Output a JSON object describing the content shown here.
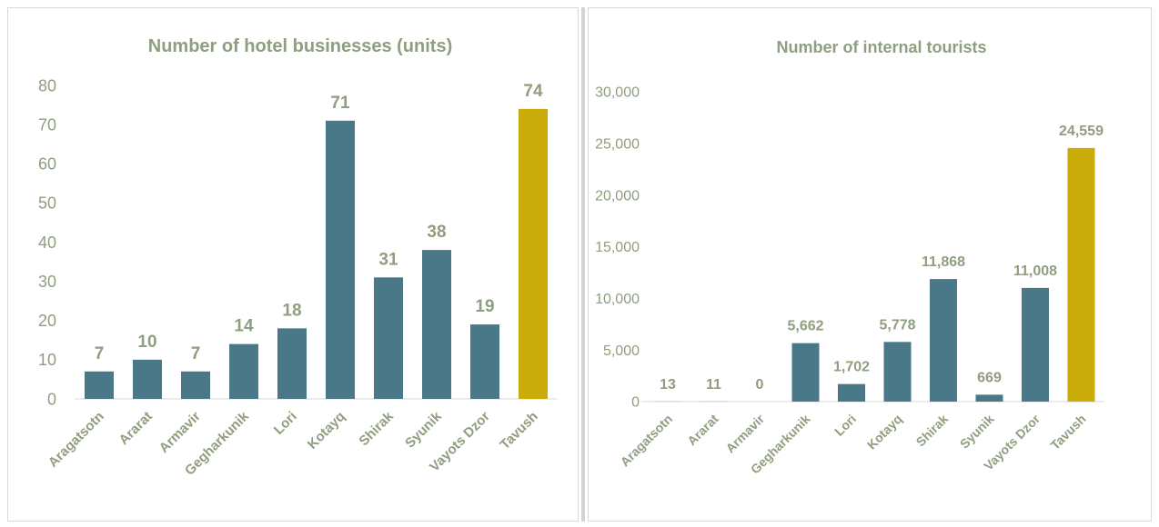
{
  "colors": {
    "bar": "#4b7889",
    "highlight": "#c9ab09",
    "text": "#8f9e7f",
    "axis": "#d9d9d9"
  },
  "chart_data": [
    {
      "type": "bar",
      "title": "Number of hotel businesses (units)",
      "categories": [
        "Aragatsotn",
        "Ararat",
        "Armavir",
        "Gegharkunik",
        "Lori",
        "Kotayq",
        "Shirak",
        "Syunik",
        "Vayots Dzor",
        "Tavush"
      ],
      "values": [
        7,
        10,
        7,
        14,
        18,
        71,
        31,
        38,
        19,
        74
      ],
      "value_labels": [
        "7",
        "10",
        "7",
        "14",
        "18",
        "71",
        "31",
        "38",
        "19",
        "74"
      ],
      "highlight_index": 9,
      "ylim": [
        0,
        80
      ],
      "yticks": [
        0,
        10,
        20,
        30,
        40,
        50,
        60,
        70,
        80
      ],
      "ytick_labels": [
        "0",
        "10",
        "20",
        "30",
        "40",
        "50",
        "60",
        "70",
        "80"
      ],
      "grid": false,
      "legend": "none"
    },
    {
      "type": "bar",
      "title": "Number of internal tourists",
      "categories": [
        "Aragatsotn",
        "Ararat",
        "Armavir",
        "Gegharkunik",
        "Lori",
        "Kotayq",
        "Shirak",
        "Syunik",
        "Vayots Dzor",
        "Tavush"
      ],
      "values": [
        13,
        11,
        0,
        5662,
        1702,
        5778,
        11868,
        669,
        11008,
        24559
      ],
      "value_labels": [
        "13",
        "11",
        "0",
        "5,662",
        "1,702",
        "5,778",
        "11,868",
        "669",
        "11,008",
        "24,559"
      ],
      "highlight_index": 9,
      "ylim": [
        0,
        30000
      ],
      "yticks": [
        0,
        5000,
        10000,
        15000,
        20000,
        25000,
        30000
      ],
      "ytick_labels": [
        "0",
        "5,000",
        "10,000",
        "15,000",
        "20,000",
        "25,000",
        "30,000"
      ],
      "grid": false,
      "legend": "none"
    }
  ]
}
